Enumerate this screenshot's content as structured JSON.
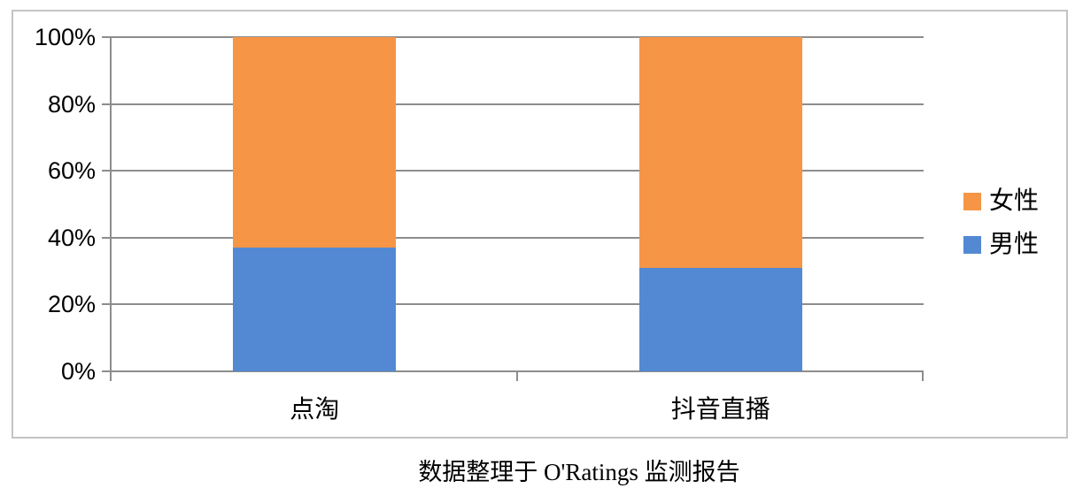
{
  "caption": "数据整理于 O'Ratings 监测报告",
  "chart_data": {
    "type": "bar",
    "subtype": "percent-stacked-column",
    "title": "",
    "xlabel": "",
    "ylabel": "",
    "categories": [
      "点淘",
      "抖音直播"
    ],
    "series": [
      {
        "name": "男性",
        "color": "#5389d3",
        "values": [
          37,
          31
        ]
      },
      {
        "name": "女性",
        "color": "#f69546",
        "values": [
          63,
          69
        ]
      }
    ],
    "stack_total": 100,
    "y_axis": {
      "min": 0,
      "max": 100,
      "step": 20,
      "ticks": [
        "0%",
        "20%",
        "40%",
        "60%",
        "80%",
        "100%"
      ]
    },
    "grid": true,
    "legend": {
      "position": "right",
      "items": [
        {
          "label": "女性",
          "color": "#f69546"
        },
        {
          "label": "男性",
          "color": "#5389d3"
        }
      ]
    },
    "colors": {
      "gridline": "#8d8d8d",
      "axis": "#8d8d8d",
      "frame_border": "#c4c4c4",
      "text": "#000000"
    }
  }
}
